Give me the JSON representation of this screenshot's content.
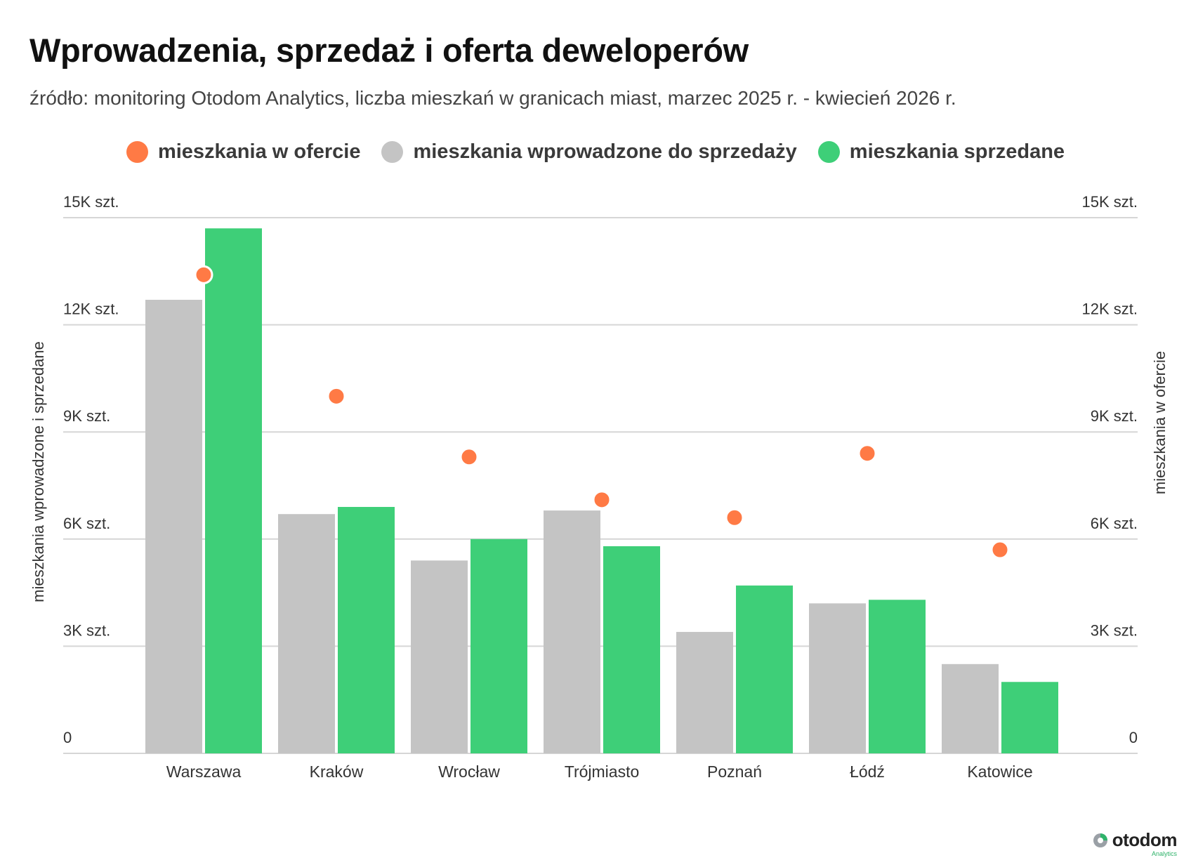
{
  "title": "Wprowadzenia, sprzedaż i oferta deweloperów",
  "subtitle": "źródło: monitoring Otodom Analytics, liczba mieszkań w granicach miast, marzec 2025 r. - kwiecień 2026 r.",
  "legend": [
    {
      "label": "mieszkania w ofercie",
      "color": "#ff7a45"
    },
    {
      "label": "mieszkania wprowadzone do sprzedaży",
      "color": "#c4c4c4"
    },
    {
      "label": "mieszkania sprzedane",
      "color": "#3ecf78"
    }
  ],
  "logo": {
    "name": "otodom",
    "sub": "Analytics"
  },
  "chart_data": {
    "type": "bar",
    "categories": [
      "Warszawa",
      "Kraków",
      "Wrocław",
      "Trójmiasto",
      "Poznań",
      "Łódź",
      "Katowice"
    ],
    "series": [
      {
        "name": "mieszkania wprowadzone do sprzedaży",
        "type": "bar",
        "axis": "left",
        "color": "#c4c4c4",
        "values": [
          12700,
          6700,
          5400,
          6800,
          3400,
          4200,
          2500
        ]
      },
      {
        "name": "mieszkania sprzedane",
        "type": "bar",
        "axis": "left",
        "color": "#3ecf78",
        "values": [
          14700,
          6900,
          6000,
          5800,
          4700,
          4300,
          2000
        ]
      },
      {
        "name": "mieszkania w ofercie",
        "type": "scatter",
        "axis": "right",
        "color": "#ff7a45",
        "values": [
          13400,
          10000,
          8300,
          7100,
          6600,
          8400,
          5700
        ]
      }
    ],
    "ylabel": "mieszkania wprowadzone i sprzedane",
    "y2label": "mieszkania w ofercie",
    "ylim": [
      0,
      15000
    ],
    "y2lim": [
      0,
      15000
    ],
    "yticks": [
      "0",
      "3K szt.",
      "6K szt.",
      "9K szt.",
      "12K szt.",
      "15K szt."
    ],
    "ytick_values": [
      0,
      3000,
      6000,
      9000,
      12000,
      15000
    ],
    "grid": true,
    "legend_position": "top-center"
  }
}
